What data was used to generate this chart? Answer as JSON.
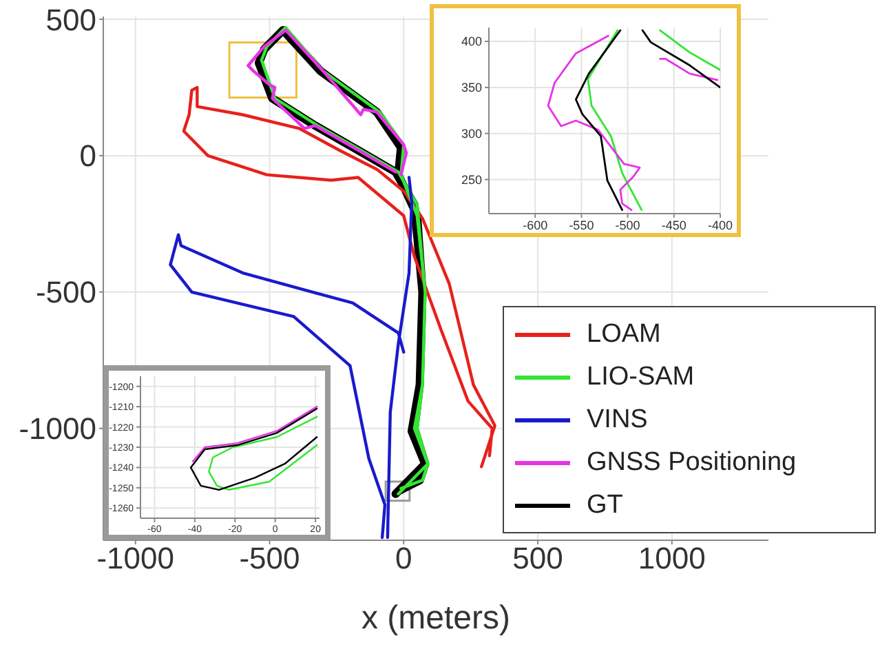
{
  "chart_data": [
    {
      "type": "line",
      "xlabel": "x (meters)",
      "xlim": [
        -1120,
        1360
      ],
      "ylim": [
        -1410,
        510
      ],
      "xticks": [
        -1000,
        -500,
        0,
        500,
        1000
      ],
      "yticks": [
        -1000,
        -500,
        0,
        500
      ],
      "grid": true,
      "legend": "bottom right",
      "series": [
        {
          "name": "LOAM",
          "color": "#e8201c",
          "x": [
            290,
            340,
            260,
            170,
            70,
            0,
            -100,
            -240,
            -390,
            -600,
            -770,
            -770,
            -790,
            -800,
            -820,
            -730,
            -510,
            -270,
            -170,
            0,
            40,
            140,
            240,
            330,
            320
          ],
          "values": [
            -1140,
            -990,
            -840,
            -470,
            -230,
            -130,
            -50,
            20,
            100,
            150,
            180,
            250,
            240,
            150,
            90,
            0,
            -70,
            -90,
            -80,
            -220,
            -370,
            -640,
            -900,
            -1000,
            -1100
          ]
        },
        {
          "name": "LIO-SAM",
          "color": "#33e633",
          "x": [
            -10,
            70,
            90,
            50,
            70,
            80,
            50,
            -10,
            0,
            -90,
            -300,
            -440,
            -510,
            -530,
            -480,
            -320,
            -160,
            -20,
            50,
            80,
            70,
            40,
            90,
            -20
          ],
          "values": [
            -1220,
            -1190,
            -1130,
            -1000,
            -840,
            -500,
            -220,
            -70,
            40,
            160,
            310,
            470,
            400,
            350,
            210,
            110,
            20,
            -60,
            -180,
            -500,
            -840,
            -1000,
            -1130,
            -1240
          ]
        },
        {
          "name": "VINS",
          "color": "#1a1acc",
          "x": [
            -80,
            -70,
            -130,
            -200,
            -410,
            -790,
            -870,
            -840,
            -830,
            -600,
            -340,
            -190,
            -20,
            0,
            null,
            -60,
            -50,
            -20,
            20,
            30,
            20
          ],
          "values": [
            -1400,
            -1280,
            -1110,
            -770,
            -590,
            -500,
            -400,
            -290,
            -330,
            -430,
            -500,
            -540,
            -650,
            -720,
            null,
            -1400,
            -940,
            -690,
            -430,
            -170,
            -80
          ]
        },
        {
          "name": "GNSS Positioning",
          "color": "#e633e6",
          "x": [
            -10,
            10,
            0,
            -100,
            -150,
            -160,
            -300,
            -440,
            -520,
            -580,
            -560,
            -500,
            -480,
            -490,
            -370,
            -330,
            -170,
            -30
          ],
          "values": [
            -70,
            10,
            40,
            160,
            170,
            150,
            310,
            460,
            400,
            330,
            310,
            260,
            250,
            210,
            100,
            110,
            20,
            -60
          ]
        },
        {
          "name": "GT",
          "color": "#000000",
          "x": [
            -20,
            60,
            80,
            40,
            60,
            70,
            50,
            -20,
            -10,
            -100,
            -310,
            -450,
            -520,
            -540,
            -490,
            -330,
            -170,
            -30,
            40,
            70,
            60,
            30,
            80,
            -30
          ],
          "values": [
            -1230,
            -1190,
            -1130,
            -1000,
            -840,
            -500,
            -220,
            -70,
            30,
            160,
            310,
            460,
            390,
            340,
            210,
            110,
            20,
            -60,
            -180,
            -500,
            -840,
            -1010,
            -1130,
            -1240
          ]
        }
      ]
    },
    {
      "type": "line",
      "xlim": [
        -650,
        -400
      ],
      "ylim": [
        213,
        415
      ],
      "xticks": [
        -600,
        -550,
        -500,
        -450,
        -400
      ],
      "yticks": [
        250,
        300,
        350,
        400
      ],
      "grid": true,
      "series": [
        {
          "color": "#33e633",
          "x": [
            -511,
            -543,
            -539,
            -518,
            -506,
            -485,
            null,
            -465,
            -433,
            -400
          ],
          "values": [
            412,
            359,
            330,
            297,
            257,
            217,
            null,
            412,
            388,
            369
          ]
        },
        {
          "color": "#e633e6",
          "x": [
            -521,
            -556,
            -579,
            -586,
            -572,
            -556,
            -532,
            -504,
            -487,
            -494,
            -508,
            -506,
            -496,
            null,
            -465,
            -459,
            -433,
            -403
          ],
          "values": [
            406,
            387,
            355,
            330,
            308,
            314,
            304,
            267,
            263,
            253,
            239,
            224,
            217,
            null,
            381,
            381,
            365,
            358
          ]
        },
        {
          "color": "#000000",
          "x": [
            -508,
            -542,
            -556,
            -549,
            -529,
            -522,
            -506,
            null,
            -484,
            -475,
            -433,
            -400
          ],
          "values": [
            412,
            365,
            337,
            321,
            297,
            249,
            217,
            null,
            412,
            399,
            374,
            350
          ]
        }
      ]
    },
    {
      "type": "line",
      "xlim": [
        -67,
        22
      ],
      "ylim": [
        -1265,
        -1195
      ],
      "xticks": [
        -60,
        -40,
        -20,
        0,
        20
      ],
      "yticks": [
        -1260,
        -1250,
        -1240,
        -1230,
        -1220,
        -1210,
        -1200
      ],
      "grid": true,
      "series": [
        {
          "color": "#33e633",
          "x": [
            20.7,
            0.7,
            -21,
            -31,
            -33,
            -29,
            -23,
            -3,
            20.7
          ],
          "values": [
            -1215,
            -1225,
            -1230,
            -1235,
            -1242,
            -1249,
            -1251,
            -1247,
            -1229
          ]
        },
        {
          "color": "#e633e6",
          "x": [
            20.7,
            0.7,
            -19,
            -35,
            -41
          ],
          "values": [
            -1210,
            -1222,
            -1228,
            -1230,
            -1237
          ]
        },
        {
          "color": "#000000",
          "x": [
            20.7,
            0.7,
            -19,
            -35,
            -42,
            -37,
            -28,
            -10,
            5,
            20.7
          ],
          "values": [
            -1211,
            -1223,
            -1229,
            -1231,
            -1240,
            -1249,
            -1251,
            -1245,
            -1238,
            -1225
          ]
        }
      ]
    }
  ]
}
